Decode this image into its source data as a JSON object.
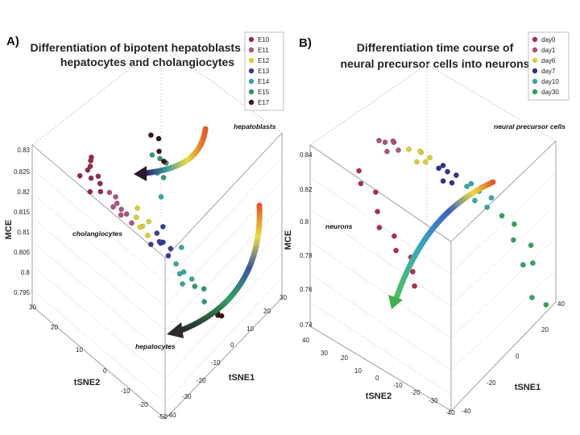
{
  "chart_data": [
    {
      "panel": "A)",
      "type": "scatter",
      "title": "Differentiation of bipotent hepatoblasts into hepatocytes and cholangiocytes",
      "title_lines": [
        "Differentiation of bipotent hepatoblasts into",
        "hepatocytes and cholangiocytes"
      ],
      "xlabel": "tSNE1",
      "ylabel": "tSNE2",
      "zlabel": "MCE",
      "z_ticks": [
        "0.83",
        "0.825",
        "0.82",
        "0.815",
        "0.81",
        "0.805",
        "0.8",
        "0.795"
      ],
      "x_ticks": [
        "30",
        "20",
        "10",
        "0",
        "-10",
        "-20",
        "-30",
        "-40"
      ],
      "y_ticks": [
        "30",
        "20",
        "10",
        "0",
        "-10",
        "-20",
        "-50"
      ],
      "annotations": [
        "hepatoblasts",
        "cholangiocytes",
        "hepatocytes"
      ],
      "legend": [
        {
          "label": "E10",
          "color": "#8f2f46"
        },
        {
          "label": "E11",
          "color": "#a8557f"
        },
        {
          "label": "E12",
          "color": "#d8cc3a"
        },
        {
          "label": "E13",
          "color": "#3a3d8f"
        },
        {
          "label": "E14",
          "color": "#3aa5a0"
        },
        {
          "label": "E15",
          "color": "#35956c"
        },
        {
          "label": "E17",
          "color": "#3b1616"
        }
      ],
      "series": [
        {
          "name": "E10",
          "points": [
            [
              -8,
              28,
              0.827
            ],
            [
              -12,
              24,
              0.826
            ],
            [
              -5,
              30,
              0.828
            ],
            [
              -15,
              22,
              0.824
            ],
            [
              -10,
              26,
              0.829
            ],
            [
              -6,
              25,
              0.825
            ],
            [
              -14,
              29,
              0.826
            ],
            [
              -9,
              21,
              0.823
            ],
            [
              -11,
              27,
              0.827
            ],
            [
              -7,
              23,
              0.824
            ]
          ]
        },
        {
          "name": "E11",
          "points": [
            [
              -4,
              20,
              0.822
            ],
            [
              -2,
              18,
              0.821
            ],
            [
              -6,
              16,
              0.82
            ],
            [
              0,
              19,
              0.819
            ],
            [
              -3,
              14,
              0.818
            ],
            [
              2,
              15,
              0.817
            ],
            [
              -5,
              12,
              0.82
            ],
            [
              1,
              11,
              0.816
            ]
          ]
        },
        {
          "name": "E12",
          "points": [
            [
              3,
              10,
              0.817
            ],
            [
              5,
              8,
              0.815
            ],
            [
              1,
              6,
              0.816
            ],
            [
              6,
              12,
              0.818
            ],
            [
              4,
              4,
              0.814
            ],
            [
              7,
              6,
              0.816
            ]
          ]
        },
        {
          "name": "E13",
          "points": [
            [
              8,
              2,
              0.814
            ],
            [
              10,
              0,
              0.812
            ],
            [
              6,
              -2,
              0.813
            ],
            [
              12,
              4,
              0.811
            ],
            [
              9,
              -4,
              0.81
            ],
            [
              11,
              1,
              0.815
            ],
            [
              14,
              -1,
              0.81
            ],
            [
              5,
              3,
              0.812
            ]
          ]
        },
        {
          "name": "E14",
          "points": [
            [
              12,
              -6,
              0.808
            ],
            [
              15,
              -8,
              0.806
            ],
            [
              10,
              -10,
              0.807
            ],
            [
              18,
              -4,
              0.81
            ],
            [
              20,
              10,
              0.818
            ],
            [
              22,
              14,
              0.822
            ],
            [
              16,
              -12,
              0.805
            ],
            [
              13,
              -9,
              0.804
            ]
          ]
        },
        {
          "name": "E15",
          "points": [
            [
              18,
              -12,
              0.803
            ],
            [
              22,
              -14,
              0.802
            ],
            [
              24,
              12,
              0.821
            ],
            [
              26,
              16,
              0.824
            ],
            [
              20,
              -16,
              0.8
            ],
            [
              23,
              18,
              0.825
            ],
            [
              28,
              14,
              0.823
            ]
          ]
        },
        {
          "name": "E17",
          "points": [
            [
              22,
              -20,
              0.798
            ],
            [
              25,
              -22,
              0.797
            ],
            [
              20,
              -24,
              0.799
            ],
            [
              27,
              -18,
              0.796
            ],
            [
              30,
              20,
              0.824
            ],
            [
              32,
              22,
              0.826
            ],
            [
              29,
              24,
              0.827
            ],
            [
              31,
              18,
              0.822
            ]
          ]
        }
      ]
    },
    {
      "panel": "B)",
      "type": "scatter",
      "title": "Differentiation time course of neural precursor cells into neurons",
      "title_lines": [
        "Differentiation time course of",
        "neural precursor cells into neurons"
      ],
      "xlabel": "tSNE1",
      "ylabel": "tSNE2",
      "zlabel": "MCE",
      "z_ticks": [
        "0.84",
        "0.82",
        "0.8",
        "0.78",
        "0.76",
        "0.74"
      ],
      "x_ticks": [
        "40",
        "20",
        "0",
        "-20",
        "-40"
      ],
      "y_ticks": [
        "40",
        "30",
        "20",
        "10",
        "0",
        "-10",
        "-20",
        "-30",
        "-40"
      ],
      "annotations": [
        "neural precursor cells",
        "neurons"
      ],
      "legend": [
        {
          "label": "day0",
          "color": "#a8314a"
        },
        {
          "label": "day1",
          "color": "#a8557f"
        },
        {
          "label": "day6",
          "color": "#d8cc3a"
        },
        {
          "label": "day7",
          "color": "#2f338a"
        },
        {
          "label": "day10",
          "color": "#3aa5a0"
        },
        {
          "label": "day30",
          "color": "#35a060"
        }
      ],
      "series": [
        {
          "name": "day0",
          "points": [
            [
              -30,
              30,
              0.83
            ],
            [
              -34,
              26,
              0.826
            ],
            [
              -28,
              22,
              0.82
            ],
            [
              -32,
              18,
              0.812
            ],
            [
              -36,
              14,
              0.806
            ],
            [
              -30,
              10,
              0.8
            ],
            [
              -34,
              6,
              0.795
            ],
            [
              -28,
              2,
              0.79
            ],
            [
              -32,
              -2,
              0.785
            ],
            [
              -36,
              -6,
              0.78
            ]
          ]
        },
        {
          "name": "day1",
          "points": [
            [
              -10,
              30,
              0.838
            ],
            [
              -6,
              28,
              0.837
            ],
            [
              -14,
              26,
              0.836
            ],
            [
              -8,
              24,
              0.835
            ],
            [
              -12,
              32,
              0.839
            ],
            [
              -4,
              30,
              0.836
            ]
          ]
        },
        {
          "name": "day6",
          "points": [
            [
              0,
              24,
              0.832
            ],
            [
              4,
              20,
              0.83
            ],
            [
              -2,
              18,
              0.828
            ],
            [
              6,
              22,
              0.829
            ],
            [
              2,
              16,
              0.827
            ],
            [
              8,
              18,
              0.826
            ]
          ]
        },
        {
          "name": "day7",
          "points": [
            [
              4,
              10,
              0.825
            ],
            [
              8,
              8,
              0.822
            ],
            [
              2,
              6,
              0.82
            ],
            [
              10,
              12,
              0.823
            ],
            [
              6,
              4,
              0.818
            ],
            [
              12,
              6,
              0.819
            ]
          ]
        },
        {
          "name": "day10",
          "points": [
            [
              12,
              0,
              0.815
            ],
            [
              16,
              -4,
              0.812
            ],
            [
              10,
              -6,
              0.81
            ],
            [
              18,
              2,
              0.813
            ],
            [
              14,
              -10,
              0.806
            ],
            [
              20,
              -8,
              0.808
            ]
          ]
        },
        {
          "name": "day30",
          "points": [
            [
              20,
              -14,
              0.8
            ],
            [
              24,
              -18,
              0.795
            ],
            [
              18,
              -22,
              0.79
            ],
            [
              26,
              -26,
              0.785
            ],
            [
              22,
              -30,
              0.778
            ],
            [
              28,
              -20,
              0.77
            ],
            [
              16,
              -34,
              0.762
            ],
            [
              24,
              -36,
              0.755
            ]
          ]
        }
      ]
    }
  ]
}
